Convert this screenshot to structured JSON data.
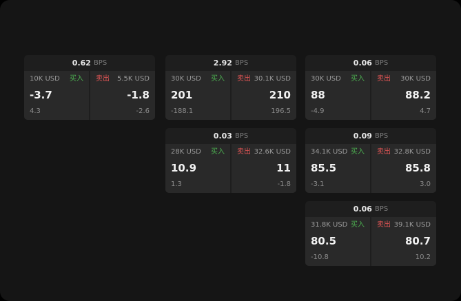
{
  "labels": {
    "bps": "BPS",
    "buy": "买入",
    "sell": "卖出"
  },
  "colors": {
    "buy": "#4caf50",
    "sell": "#e05555",
    "background": "#151515",
    "card": "#1e1e1e",
    "panel": "#292929"
  },
  "cards": [
    {
      "bps": "0.62",
      "buy": {
        "size": "10K USD",
        "price": "-3.7",
        "delta": "4.3"
      },
      "sell": {
        "size": "5.5K USD",
        "price": "-1.8",
        "delta": "-2.6"
      }
    },
    {
      "bps": "2.92",
      "buy": {
        "size": "30K USD",
        "price": "201",
        "delta": "-188.1"
      },
      "sell": {
        "size": "30.1K USD",
        "price": "210",
        "delta": "196.5"
      }
    },
    {
      "bps": "0.06",
      "buy": {
        "size": "30K USD",
        "price": "88",
        "delta": "-4.9"
      },
      "sell": {
        "size": "30K USD",
        "price": "88.2",
        "delta": "4.7"
      }
    },
    {
      "bps": "0.03",
      "buy": {
        "size": "28K USD",
        "price": "10.9",
        "delta": "1.3"
      },
      "sell": {
        "size": "32.6K USD",
        "price": "11",
        "delta": "-1.8"
      }
    },
    {
      "bps": "0.09",
      "buy": {
        "size": "34.1K USD",
        "price": "85.5",
        "delta": "-3.1"
      },
      "sell": {
        "size": "32.8K USD",
        "price": "85.8",
        "delta": "3.0"
      }
    },
    {
      "bps": "0.06",
      "buy": {
        "size": "31.8K USD",
        "price": "80.5",
        "delta": "-10.8"
      },
      "sell": {
        "size": "39.1K USD",
        "price": "80.7",
        "delta": "10.2"
      }
    }
  ]
}
